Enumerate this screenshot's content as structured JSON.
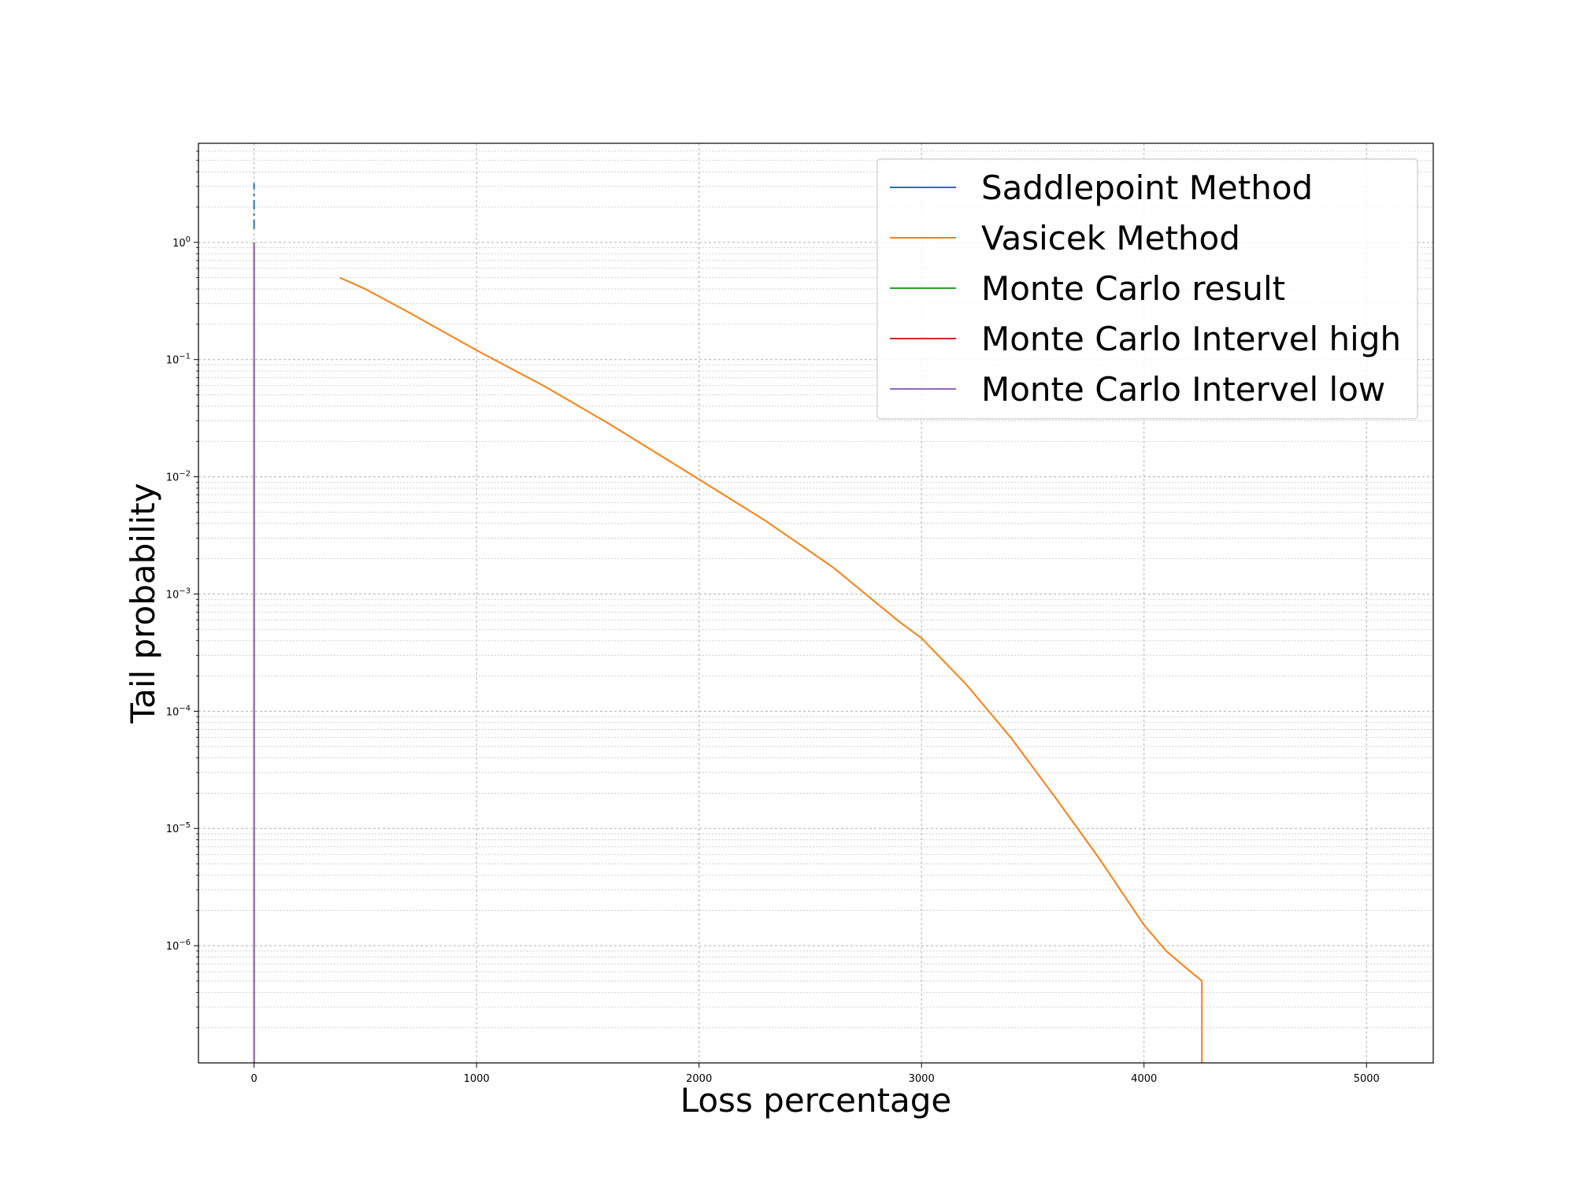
{
  "chart_data": {
    "type": "line",
    "title": "",
    "xlabel": "Loss percentage",
    "ylabel": "Tail probability",
    "xlim": [
      -250,
      5300
    ],
    "ylim": [
      1e-07,
      7
    ],
    "yscale": "log",
    "grid": true,
    "legend_position": "top-right",
    "x_ticks": [
      0,
      1000,
      2000,
      3000,
      4000,
      5000
    ],
    "y_ticks": [
      {
        "value": 1,
        "base": "10",
        "exp": "0"
      },
      {
        "value": 0.1,
        "base": "10",
        "exp": "−1"
      },
      {
        "value": 0.01,
        "base": "10",
        "exp": "−2"
      },
      {
        "value": 0.001,
        "base": "10",
        "exp": "−3"
      },
      {
        "value": 0.0001,
        "base": "10",
        "exp": "−4"
      },
      {
        "value": 1e-05,
        "base": "10",
        "exp": "−5"
      },
      {
        "value": 1e-06,
        "base": "10",
        "exp": "−6"
      }
    ],
    "series": [
      {
        "name": "Saddlepoint Method",
        "color": "#1f77b4",
        "dashed": true,
        "x": [
          0,
          0
        ],
        "y": [
          1.3,
          3.2
        ]
      },
      {
        "name": "Vasicek Method",
        "color": "#ff7f0e",
        "x": [
          385,
          500,
          700,
          1000,
          1300,
          1600,
          2000,
          2300,
          2600,
          2900,
          3000,
          3200,
          3400,
          3600,
          3800,
          4000,
          4100,
          4200,
          4260,
          4260
        ],
        "y": [
          0.5,
          0.4,
          0.25,
          0.12,
          0.06,
          0.028,
          0.0095,
          0.0042,
          0.0017,
          0.00058,
          0.00042,
          0.00017,
          6e-05,
          1.85e-05,
          5.5e-06,
          1.5e-06,
          9e-07,
          6.2e-07,
          5e-07,
          1e-07
        ]
      },
      {
        "name": "Monte Carlo result",
        "color": "#2ca02c",
        "x": [
          0,
          0
        ],
        "y": [
          1,
          1e-07
        ]
      },
      {
        "name": "Monte Carlo Intervel high",
        "color": "#d62728",
        "x": [
          0,
          0
        ],
        "y": [
          1,
          1e-07
        ]
      },
      {
        "name": "Monte Carlo Intervel low",
        "color": "#9467bd",
        "x": [
          0,
          0
        ],
        "y": [
          1,
          1e-07
        ]
      }
    ]
  }
}
